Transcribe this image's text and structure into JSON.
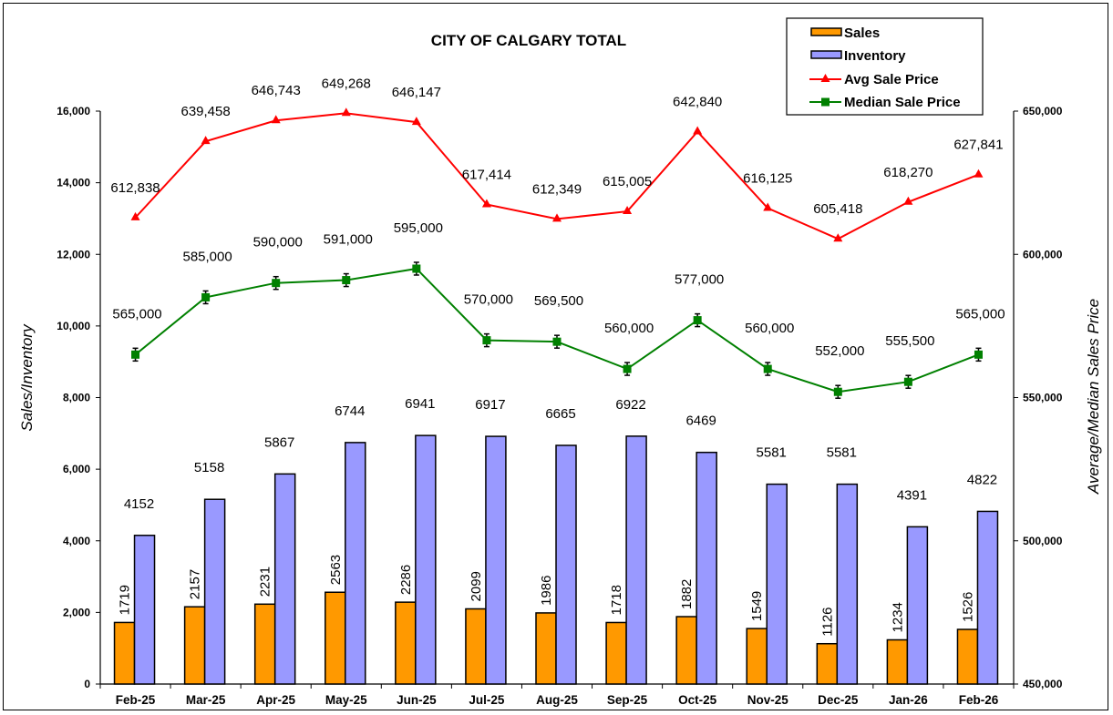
{
  "chart_data": {
    "type": "bar",
    "title": "CITY OF CALGARY TOTAL",
    "categories": [
      "Feb-25",
      "Mar-25",
      "Apr-25",
      "May-25",
      "Jun-25",
      "Jul-25",
      "Aug-25",
      "Sep-25",
      "Oct-25",
      "Nov-25",
      "Dec-25",
      "Jan-26",
      "Feb-26"
    ],
    "ylabel": "Sales/Inventory",
    "y2label": "Average/Median Sales Price",
    "ylim": [
      0,
      16000
    ],
    "y2lim": [
      450000,
      650000
    ],
    "yticks": [
      "0",
      "2,000",
      "4,000",
      "6,000",
      "8,000",
      "10,000",
      "12,000",
      "14,000",
      "16,000"
    ],
    "y2ticks": [
      "450,000",
      "500,000",
      "550,000",
      "600,000",
      "650,000"
    ],
    "legend_position": "top-right",
    "series": [
      {
        "name": "Sales",
        "type": "bar",
        "axis": "left",
        "color": "#FF9900",
        "values": [
          1719,
          2157,
          2231,
          2563,
          2286,
          2099,
          1986,
          1718,
          1882,
          1549,
          1126,
          1234,
          1526
        ],
        "labels": [
          "1719",
          "2157",
          "2231",
          "2563",
          "2286",
          "2099",
          "1986",
          "1718",
          "1882",
          "1549",
          "1126",
          "1234",
          "1526"
        ]
      },
      {
        "name": "Inventory",
        "type": "bar",
        "axis": "left",
        "color": "#9999FF",
        "values": [
          4152,
          5158,
          5867,
          6744,
          6941,
          6917,
          6665,
          6922,
          6469,
          5581,
          5581,
          4391,
          4822
        ],
        "labels": [
          "4152",
          "5158",
          "5867",
          "6744",
          "6941",
          "6917",
          "6665",
          "6922",
          "6469",
          "5581",
          "5581",
          "4391",
          "4822"
        ]
      },
      {
        "name": "Avg Sale Price",
        "type": "line",
        "axis": "right",
        "color": "#FF0000",
        "marker": "triangle",
        "values": [
          612838,
          639458,
          646743,
          649268,
          646147,
          617414,
          612349,
          615005,
          642840,
          616125,
          605418,
          618270,
          627841
        ],
        "labels": [
          "612,838",
          "639,458",
          "646,743",
          "649,268",
          "646,147",
          "617,414",
          "612,349",
          "615,005",
          "642,840",
          "616,125",
          "605,418",
          "618,270",
          "627,841"
        ]
      },
      {
        "name": "Median Sale Price",
        "type": "line",
        "axis": "right",
        "color": "#008000",
        "marker": "square",
        "values": [
          565000,
          585000,
          590000,
          591000,
          595000,
          570000,
          569500,
          560000,
          577000,
          560000,
          552000,
          555500,
          565000
        ],
        "labels": [
          "565,000",
          "585,000",
          "590,000",
          "591,000",
          "595,000",
          "570,000",
          "569,500",
          "560,000",
          "577,000",
          "560,000",
          "552,000",
          "555,500",
          "565,000"
        ]
      }
    ]
  }
}
